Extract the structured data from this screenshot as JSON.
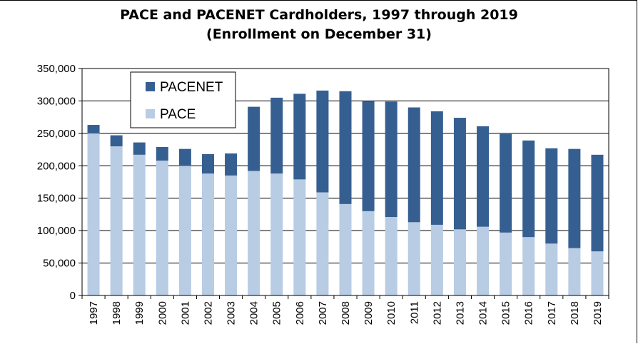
{
  "chart_data": {
    "type": "bar",
    "stacked": true,
    "title": "PACE and PACENET Cardholders, 1997 through 2019",
    "subtitle": "(Enrollment on December 31)",
    "xlabel": "",
    "ylabel": "",
    "ylim": [
      0,
      350000
    ],
    "yticks": [
      "0",
      "50,000",
      "100,000",
      "150,000",
      "200,000",
      "250,000",
      "300,000",
      "350,000"
    ],
    "grid": true,
    "legend_position": "top-left",
    "categories": [
      "1997",
      "1998",
      "1999",
      "2000",
      "2001",
      "2002",
      "2003",
      "2004",
      "2005",
      "2006",
      "2007",
      "2008",
      "2009",
      "2010",
      "2011",
      "2012",
      "2013",
      "2014",
      "2015",
      "2016",
      "2017",
      "2018",
      "2019"
    ],
    "series": [
      {
        "name": "PACE",
        "color": "#b8cce4",
        "values": [
          250000,
          230000,
          217000,
          208000,
          200000,
          188000,
          185000,
          192000,
          188000,
          179000,
          159000,
          141000,
          130000,
          121000,
          113000,
          109000,
          102000,
          106000,
          97000,
          90000,
          80000,
          73000,
          68000
        ]
      },
      {
        "name": "PACENET",
        "color": "#365f91",
        "values": [
          13000,
          17000,
          19000,
          21000,
          26000,
          30000,
          34000,
          99000,
          117000,
          132000,
          157000,
          174000,
          170000,
          178000,
          177000,
          175000,
          172000,
          155000,
          152000,
          149000,
          147000,
          153000,
          149000
        ]
      }
    ],
    "legend_order": [
      "PACENET",
      "PACE"
    ]
  }
}
